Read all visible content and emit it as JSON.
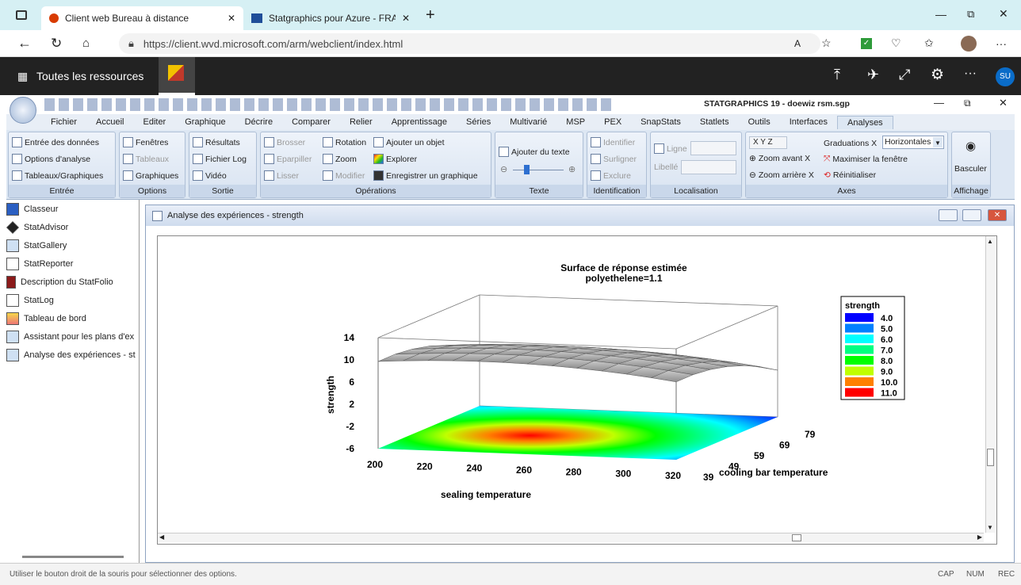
{
  "browser": {
    "tabs": [
      {
        "title": "Client web Bureau à distance"
      },
      {
        "title": "Statgraphics pour Azure - FRAN"
      }
    ],
    "url": "https://client.wvd.microsoft.com/arm/webclient/index.html",
    "profile_initials": "SU"
  },
  "rdp": {
    "all_resources": "Toutes les ressources"
  },
  "app": {
    "title": "STATGRAPHICS 19 - doewiz rsm.sgp",
    "menu": [
      "Fichier",
      "Accueil",
      "Editer",
      "Graphique",
      "Décrire",
      "Comparer",
      "Relier",
      "Apprentissage",
      "Séries",
      "Multivarié",
      "MSP",
      "PEX",
      "SnapStats",
      "Statlets",
      "Outils",
      "Interfaces",
      "Analyses"
    ],
    "active_menu": "Analyses"
  },
  "ribbon": {
    "entree": {
      "label": "Entrée",
      "items": [
        "Entrée des données",
        "Options d'analyse",
        "Tableaux/Graphiques"
      ]
    },
    "options": {
      "label": "Options",
      "items": [
        "Fenêtres",
        "Tableaux",
        "Graphiques"
      ]
    },
    "sortie": {
      "label": "Sortie",
      "items": [
        "Résultats",
        "Fichier Log",
        "Vidéo"
      ]
    },
    "operations": {
      "label": "Opérations",
      "items": [
        "Brosser",
        "Eparpiller",
        "Lisser",
        "Rotation",
        "Zoom",
        "Modifier",
        "Ajouter un objet",
        "Explorer",
        "Enregistrer un graphique"
      ]
    },
    "texte": {
      "label": "Texte",
      "items": [
        "Ajouter du texte"
      ]
    },
    "identification": {
      "label": "Identification",
      "items": [
        "Identifier",
        "Surligner",
        "Exclure"
      ]
    },
    "localisation": {
      "label": "Localisation",
      "items": [
        "Ligne",
        "Libellé"
      ]
    },
    "axes": {
      "label": "Axes",
      "xyz": "X Y Z",
      "graduations": "Graduations X",
      "graduations_value": "Horizontales",
      "items": [
        "Zoom avant X",
        "Zoom arrière X",
        "Maximiser la fenêtre",
        "Réinitialiser"
      ]
    },
    "affichage": {
      "label": "Affichage",
      "items": [
        "Basculer"
      ]
    }
  },
  "sidebar": {
    "items": [
      "Classeur",
      "StatAdvisor",
      "StatGallery",
      "StatReporter",
      "Description du StatFolio",
      "StatLog",
      "Tableau de bord",
      "Assistant pour les plans d'ex",
      "Analyse des expériences - st"
    ]
  },
  "window": {
    "title": "Analyse des expériences - strength"
  },
  "chart_data": {
    "type": "surface",
    "title": "Surface de réponse estimée",
    "subtitle": "polyethelene=1.1",
    "xlabel": "sealing temperature",
    "ylabel": "cooling bar temperature",
    "zlabel": "strength",
    "x_ticks": [
      "200",
      "220",
      "240",
      "260",
      "280",
      "300",
      "320"
    ],
    "y_ticks": [
      "39",
      "49",
      "59",
      "69",
      "79"
    ],
    "z_ticks": [
      "-6",
      "-2",
      "2",
      "6",
      "10",
      "14"
    ],
    "legend": {
      "title": "strength",
      "entries": [
        {
          "label": "4.0",
          "color": "#0000ff"
        },
        {
          "label": "5.0",
          "color": "#0080ff"
        },
        {
          "label": "6.0",
          "color": "#00ffff"
        },
        {
          "label": "7.0",
          "color": "#00ff80"
        },
        {
          "label": "8.0",
          "color": "#00ff00"
        },
        {
          "label": "9.0",
          "color": "#c0ff00"
        },
        {
          "label": "10.0",
          "color": "#ff8000"
        },
        {
          "label": "11.0",
          "color": "#ff0000"
        }
      ]
    }
  },
  "status": {
    "hint": "Utiliser le bouton droit de la souris pour sélectionner des options.",
    "cap": "CAP",
    "num": "NUM",
    "rec": "REC"
  }
}
